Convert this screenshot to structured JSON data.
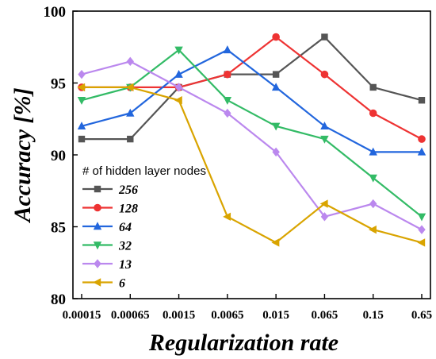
{
  "chart_data": {
    "type": "line",
    "title": "",
    "xlabel": "Regularization rate",
    "ylabel": "Accuracy [%]",
    "categories": [
      "0.00015",
      "0.00065",
      "0.0015",
      "0.0065",
      "0.015",
      "0.065",
      "0.15",
      "0.65"
    ],
    "category_labels": [
      "0.00015",
      "0.00065",
      "0.0015",
      "0.0065",
      "0.015",
      "0.065",
      "0.15",
      "0.65"
    ],
    "ylim": [
      80,
      100
    ],
    "yticks": [
      80,
      85,
      90,
      95,
      100
    ],
    "legend": {
      "title": "# of hidden layer nodes",
      "placement": "center-left"
    },
    "series": [
      {
        "name": "256",
        "color": "#555555",
        "marker": "square",
        "values": [
          91.1,
          91.1,
          94.7,
          95.6,
          95.6,
          98.2,
          94.7,
          93.8
        ]
      },
      {
        "name": "128",
        "color": "#ee3333",
        "marker": "circle",
        "values": [
          94.7,
          94.7,
          94.7,
          95.6,
          98.2,
          95.6,
          92.9,
          91.1
        ]
      },
      {
        "name": "64",
        "color": "#2266dd",
        "marker": "triangle-up",
        "values": [
          92.0,
          92.9,
          95.6,
          97.3,
          94.7,
          92.0,
          90.2,
          90.2
        ]
      },
      {
        "name": "32",
        "color": "#33bb66",
        "marker": "triangle-down",
        "values": [
          93.8,
          94.7,
          97.3,
          93.8,
          92.0,
          91.1,
          88.4,
          85.7
        ]
      },
      {
        "name": "13",
        "color": "#bb88ee",
        "marker": "diamond",
        "values": [
          95.6,
          96.5,
          94.7,
          92.9,
          90.2,
          85.7,
          86.6,
          84.8
        ]
      },
      {
        "name": "6",
        "color": "#d9a400",
        "marker": "triangle-left",
        "values": [
          94.7,
          94.7,
          93.8,
          85.7,
          83.9,
          86.6,
          84.8,
          83.9
        ]
      }
    ]
  }
}
